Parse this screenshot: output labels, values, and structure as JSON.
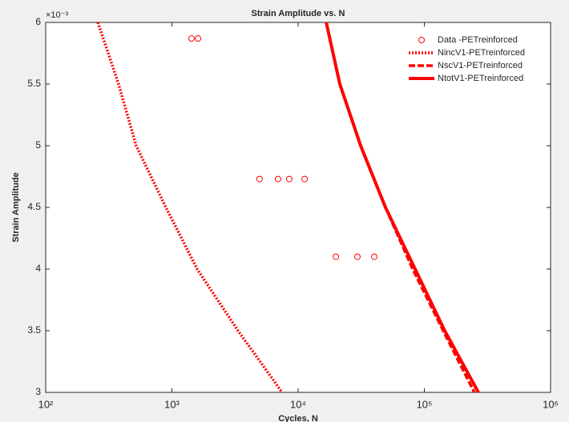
{
  "chart_data": {
    "type": "scatter-line",
    "title": "Strain Amplitude vs. N",
    "x_label": "Cycles, N",
    "y_label": "Strain Amplitude",
    "y_multiplier": "×10⁻³",
    "xscale": "log",
    "xlim": [
      100,
      1000000
    ],
    "xticks": [
      {
        "value": 100,
        "label": "10²"
      },
      {
        "value": 1000,
        "label": "10³"
      },
      {
        "value": 10000,
        "label": "10⁴"
      },
      {
        "value": 100000,
        "label": "10⁵"
      },
      {
        "value": 1000000,
        "label": "10⁶"
      }
    ],
    "ylim": [
      3,
      6
    ],
    "yticks": [
      3,
      3.5,
      4,
      4.5,
      5,
      5.5,
      6
    ],
    "legend": "northeast",
    "series": [
      {
        "name": "Data -PETreinforced",
        "color": "#ff0000",
        "style": "marker",
        "x": [
          1430,
          1610,
          4950,
          6930,
          8510,
          11250,
          19900,
          29500,
          40100
        ],
        "values": [
          5.87,
          5.87,
          4.73,
          4.73,
          4.73,
          4.73,
          4.1,
          4.1,
          4.1
        ]
      },
      {
        "name": "NincV1-PETreinforced",
        "color": "#ff0000",
        "style": "dotted",
        "x": [
          259,
          378,
          521,
          896,
          1585,
          3340,
          7470
        ],
        "values": [
          6,
          5.5,
          5,
          4.5,
          4,
          3.5,
          3
        ]
      },
      {
        "name": "NscV1-PETreinforced",
        "color": "#ff0000",
        "style": "dashed",
        "x": [
          16700,
          21400,
          31300,
          49200,
          80900,
          141000,
          249000
        ],
        "values": [
          6,
          5.5,
          5,
          4.5,
          4,
          3.5,
          3
        ]
      },
      {
        "name": "NtotV1-PETreinforced",
        "color": "#ff0000",
        "style": "solid",
        "x": [
          16700,
          21400,
          31300,
          49200,
          84500,
          145000,
          268000
        ],
        "values": [
          6,
          5.5,
          5,
          4.5,
          4,
          3.5,
          3
        ]
      }
    ]
  }
}
